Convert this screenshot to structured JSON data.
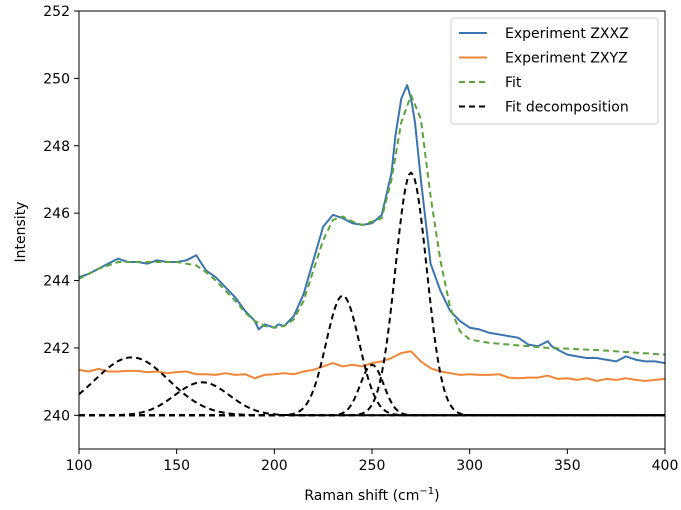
{
  "chart_data": {
    "type": "line",
    "title": "",
    "xlabel": "Raman shift (cm",
    "xlabel_sup": "−1",
    "xlabel_close": ")",
    "ylabel": "Intensity",
    "xlim": [
      100,
      400
    ],
    "ylim": [
      239,
      252
    ],
    "xticks": [
      100,
      150,
      200,
      250,
      300,
      350,
      400
    ],
    "yticks": [
      240,
      242,
      244,
      246,
      248,
      250,
      252
    ],
    "grid": false,
    "legend_position": "upper-right",
    "series": [
      {
        "name": "Experiment ZXXZ",
        "color": "#3b75af",
        "style": "solid",
        "x": [
          100,
          105,
          110,
          115,
          120,
          125,
          130,
          135,
          140,
          145,
          150,
          155,
          160,
          165,
          170,
          175,
          180,
          185,
          190,
          192,
          195,
          200,
          202,
          205,
          210,
          215,
          220,
          225,
          230,
          235,
          240,
          245,
          250,
          255,
          260,
          262,
          265,
          268,
          270,
          272,
          275,
          278,
          280,
          285,
          290,
          295,
          300,
          305,
          310,
          315,
          320,
          325,
          330,
          335,
          340,
          342,
          345,
          350,
          355,
          360,
          365,
          370,
          375,
          380,
          385,
          390,
          395,
          400
        ],
        "y": [
          244.1,
          244.2,
          244.35,
          244.5,
          244.65,
          244.55,
          244.55,
          244.5,
          244.6,
          244.55,
          244.55,
          244.6,
          244.75,
          244.3,
          244.1,
          243.8,
          243.5,
          243.1,
          242.8,
          242.55,
          242.7,
          242.6,
          242.7,
          242.65,
          242.95,
          243.6,
          244.6,
          245.6,
          245.95,
          245.85,
          245.7,
          245.65,
          245.7,
          245.95,
          247.2,
          248.3,
          249.4,
          249.8,
          249.4,
          248.7,
          247.0,
          245.5,
          244.5,
          243.7,
          243.1,
          242.8,
          242.6,
          242.55,
          242.45,
          242.4,
          242.35,
          242.3,
          242.1,
          242.05,
          242.2,
          242.05,
          241.95,
          241.8,
          241.75,
          241.7,
          241.7,
          241.65,
          241.6,
          241.75,
          241.65,
          241.6,
          241.6,
          241.55
        ]
      },
      {
        "name": "Experiment ZXYZ",
        "color": "#ef8636",
        "style": "solid",
        "x": [
          100,
          105,
          110,
          115,
          120,
          125,
          130,
          135,
          140,
          145,
          150,
          155,
          160,
          165,
          170,
          175,
          180,
          185,
          190,
          195,
          200,
          205,
          210,
          215,
          220,
          225,
          230,
          235,
          240,
          245,
          250,
          255,
          260,
          265,
          270,
          275,
          280,
          285,
          290,
          295,
          300,
          305,
          310,
          315,
          320,
          325,
          330,
          335,
          340,
          345,
          350,
          355,
          360,
          365,
          370,
          375,
          380,
          385,
          390,
          395,
          400
        ],
        "y": [
          241.35,
          241.3,
          241.38,
          241.3,
          241.3,
          241.32,
          241.32,
          241.28,
          241.3,
          241.25,
          241.28,
          241.3,
          241.22,
          241.22,
          241.2,
          241.25,
          241.2,
          241.22,
          241.1,
          241.2,
          241.22,
          241.25,
          241.22,
          241.3,
          241.35,
          241.45,
          241.55,
          241.45,
          241.5,
          241.45,
          241.55,
          241.6,
          241.7,
          241.85,
          241.9,
          241.6,
          241.4,
          241.3,
          241.25,
          241.2,
          241.22,
          241.2,
          241.2,
          241.22,
          241.12,
          241.1,
          241.12,
          241.12,
          241.18,
          241.08,
          241.1,
          241.05,
          241.1,
          241.02,
          241.08,
          241.05,
          241.1,
          241.05,
          241.02,
          241.05,
          241.08
        ]
      },
      {
        "name": "Fit",
        "color": "#5ba33a",
        "style": "dashed",
        "x": [
          100,
          105,
          110,
          115,
          120,
          125,
          130,
          135,
          140,
          145,
          150,
          155,
          160,
          165,
          170,
          175,
          180,
          185,
          190,
          195,
          200,
          205,
          210,
          215,
          220,
          225,
          230,
          235,
          240,
          245,
          250,
          255,
          260,
          265,
          270,
          275,
          280,
          285,
          290,
          295,
          300,
          310,
          320,
          330,
          340,
          350,
          360,
          370,
          380,
          390,
          400
        ],
        "y": [
          244.05,
          244.2,
          244.35,
          244.45,
          244.55,
          244.55,
          244.55,
          244.55,
          244.55,
          244.55,
          244.55,
          244.5,
          244.45,
          244.25,
          244.0,
          243.7,
          243.4,
          243.05,
          242.8,
          242.65,
          242.6,
          242.65,
          242.85,
          243.4,
          244.3,
          245.2,
          245.8,
          245.9,
          245.75,
          245.65,
          245.75,
          245.85,
          247.0,
          248.7,
          249.5,
          248.8,
          246.5,
          244.6,
          243.2,
          242.5,
          242.25,
          242.15,
          242.1,
          242.05,
          242.0,
          241.98,
          241.95,
          241.92,
          241.88,
          241.84,
          241.8
        ]
      },
      {
        "name": "Fit decomposition",
        "color": "#000000",
        "style": "dashed",
        "components": [
          {
            "center": 100,
            "amplitude": 0,
            "width": 1
          },
          {
            "center": 127,
            "amplitude": 1.72,
            "width": 19
          },
          {
            "center": 163,
            "amplitude": 0.98,
            "width": 14
          },
          {
            "center": 235,
            "amplitude": 3.55,
            "width": 8.5
          },
          {
            "center": 250,
            "amplitude": 1.5,
            "width": 6
          },
          {
            "center": 270,
            "amplitude": 7.2,
            "width": 8
          }
        ],
        "baseline": 240.0
      }
    ]
  }
}
